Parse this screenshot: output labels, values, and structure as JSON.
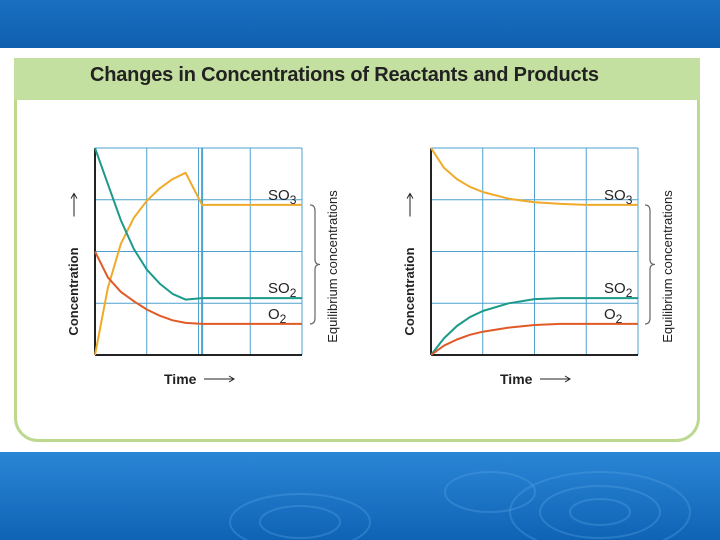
{
  "slide": {
    "title": "Changes in Concentrations of Reactants and Products"
  },
  "colors": {
    "grid": "#4ea1cf",
    "axis": "#222222",
    "so3": "#f0aa2a",
    "so2": "#1b9a8a",
    "o2": "#e05a28",
    "bracket": "#666666",
    "header_band": "#c4e0a0",
    "slide_band": "#1565b8"
  },
  "chart_data": [
    {
      "type": "line",
      "title": "",
      "xlabel": "Time",
      "ylabel": "Concentration",
      "side_label": "Equilibrium concentrations",
      "xlim": [
        0,
        4
      ],
      "ylim": [
        0,
        4
      ],
      "grid": true,
      "equilibrium_time": 2.07,
      "series": [
        {
          "name": "SO3",
          "base": "SO",
          "sub": "3",
          "color_key": "so3",
          "x": [
            0,
            0.25,
            0.5,
            0.75,
            1.0,
            1.25,
            1.5,
            1.75,
            2.07,
            2.5,
            3.0,
            3.5,
            4.0
          ],
          "y": [
            0,
            1.3,
            2.15,
            2.65,
            2.98,
            3.22,
            3.4,
            3.52,
            2.9,
            2.9,
            2.9,
            2.9,
            2.9
          ]
        },
        {
          "name": "SO2",
          "base": "SO",
          "sub": "2",
          "color_key": "so2",
          "x": [
            0,
            0.25,
            0.5,
            0.75,
            1.0,
            1.25,
            1.5,
            1.75,
            2.07,
            2.5,
            3.0,
            3.5,
            4.0
          ],
          "y": [
            4.0,
            3.3,
            2.6,
            2.05,
            1.65,
            1.38,
            1.18,
            1.07,
            1.1,
            1.1,
            1.1,
            1.1,
            1.1
          ]
        },
        {
          "name": "O2",
          "base": "O",
          "sub": "2",
          "color_key": "o2",
          "x": [
            0,
            0.25,
            0.5,
            0.75,
            1.0,
            1.25,
            1.5,
            1.75,
            2.07,
            2.5,
            3.0,
            3.5,
            4.0
          ],
          "y": [
            2.0,
            1.5,
            1.22,
            1.04,
            0.88,
            0.76,
            0.67,
            0.62,
            0.6,
            0.6,
            0.6,
            0.6,
            0.6
          ]
        }
      ]
    },
    {
      "type": "line",
      "title": "",
      "xlabel": "Time",
      "ylabel": "Concentration",
      "side_label": "Equilibrium concentrations",
      "xlim": [
        0,
        4
      ],
      "ylim": [
        0,
        4
      ],
      "grid": true,
      "series": [
        {
          "name": "SO3",
          "base": "SO",
          "sub": "3",
          "color_key": "so3",
          "x": [
            0,
            0.25,
            0.5,
            0.75,
            1.0,
            1.5,
            2.0,
            2.5,
            3.0,
            3.5,
            4.0
          ],
          "y": [
            4.0,
            3.62,
            3.4,
            3.25,
            3.15,
            3.02,
            2.95,
            2.92,
            2.9,
            2.9,
            2.9
          ]
        },
        {
          "name": "SO2",
          "base": "SO",
          "sub": "2",
          "color_key": "so2",
          "x": [
            0,
            0.25,
            0.5,
            0.75,
            1.0,
            1.5,
            2.0,
            2.5,
            3.0,
            3.5,
            4.0
          ],
          "y": [
            0,
            0.32,
            0.56,
            0.73,
            0.85,
            1.0,
            1.08,
            1.1,
            1.1,
            1.1,
            1.1
          ]
        },
        {
          "name": "O2",
          "base": "O",
          "sub": "2",
          "color_key": "o2",
          "x": [
            0,
            0.25,
            0.5,
            0.75,
            1.0,
            1.5,
            2.0,
            2.5,
            3.0,
            3.5,
            4.0
          ],
          "y": [
            0,
            0.18,
            0.3,
            0.39,
            0.45,
            0.53,
            0.58,
            0.6,
            0.6,
            0.6,
            0.6
          ]
        }
      ]
    }
  ]
}
